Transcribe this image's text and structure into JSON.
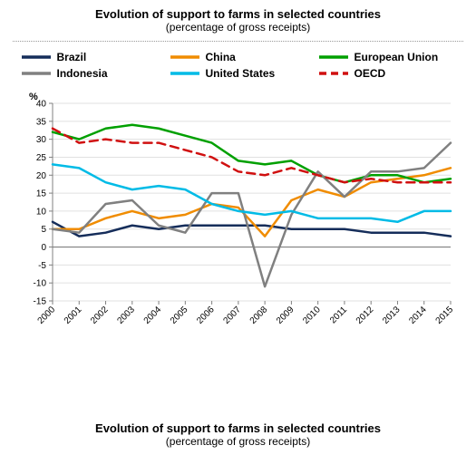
{
  "title": "Evolution of support to farms in selected countries",
  "subtitle": "(percentage of gross receipts)",
  "footer_title": "Evolution of support to farms in selected countries",
  "footer_subtitle": "(percentage of gross receipts)",
  "chart": {
    "type": "line",
    "x_categories": [
      "2000",
      "2001",
      "2002",
      "2003",
      "2004",
      "2005",
      "2006",
      "2007",
      "2008",
      "2009",
      "2010",
      "2011",
      "2012",
      "2013",
      "2014",
      "2015"
    ],
    "y": {
      "label": "%",
      "lim_min": -15,
      "lim_max": 40,
      "step": 5,
      "ticks": [
        -15,
        -10,
        -5,
        0,
        5,
        10,
        15,
        20,
        25,
        30,
        35,
        40
      ]
    },
    "background_color": "#ffffff",
    "grid_color": "#e0e0e0",
    "axis_color": "#808080",
    "tick_label_fontsize": 10,
    "tick_label_color": "#000000",
    "line_width": 2.5,
    "series": [
      {
        "name": "Brazil",
        "color": "#152d5a",
        "dash": "solid",
        "values": [
          7,
          3,
          4,
          6,
          5,
          6,
          6,
          6,
          6,
          5,
          5,
          5,
          4,
          4,
          4,
          3
        ]
      },
      {
        "name": "China",
        "color": "#f08c00",
        "dash": "solid",
        "values": [
          5,
          5,
          8,
          10,
          8,
          9,
          12,
          11,
          3,
          13,
          16,
          14,
          18,
          19,
          20,
          22
        ]
      },
      {
        "name": "European Union",
        "color": "#00a000",
        "dash": "solid",
        "values": [
          32,
          30,
          33,
          34,
          33,
          31,
          29,
          24,
          23,
          24,
          20,
          18,
          20,
          20,
          18,
          19
        ]
      },
      {
        "name": "Indonesia",
        "color": "#808080",
        "dash": "solid",
        "values": [
          5,
          4,
          12,
          13,
          6,
          4,
          15,
          15,
          -11,
          9,
          21,
          14,
          21,
          21,
          22,
          29
        ]
      },
      {
        "name": "United States",
        "color": "#00bbe6",
        "dash": "solid",
        "values": [
          23,
          22,
          18,
          16,
          17,
          16,
          12,
          10,
          9,
          10,
          8,
          8,
          8,
          7,
          10,
          10
        ]
      },
      {
        "name": "OECD",
        "color": "#d01010",
        "dash": "dash",
        "values": [
          33,
          29,
          30,
          29,
          29,
          27,
          25,
          21,
          20,
          22,
          20,
          18,
          19,
          18,
          18,
          18
        ]
      }
    ]
  }
}
